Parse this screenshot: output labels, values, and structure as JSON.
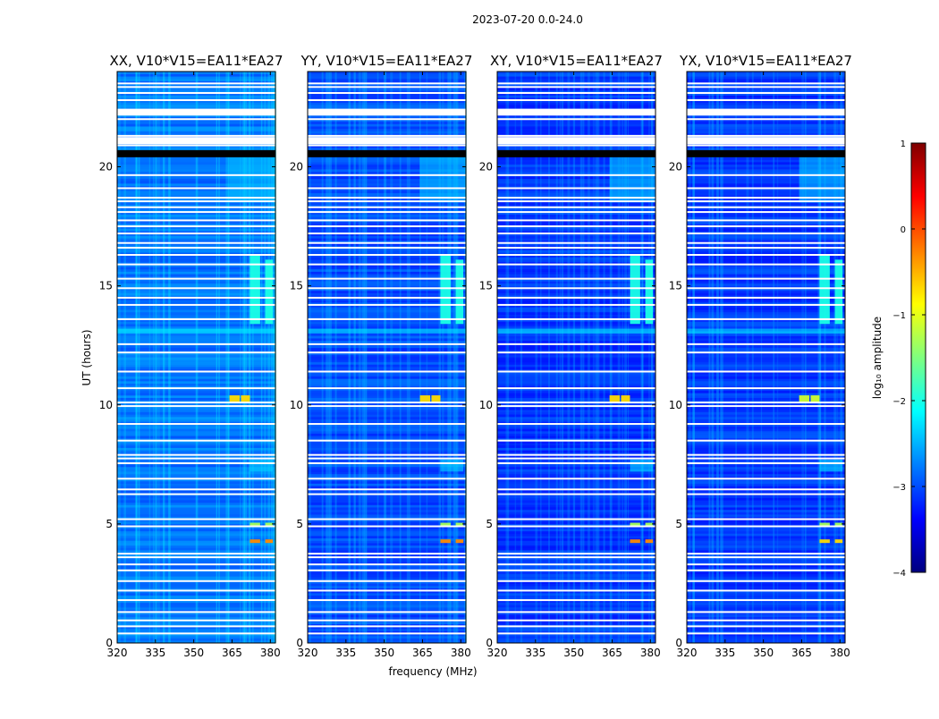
{
  "chart_data": {
    "type": "heatmap",
    "title": "2023-07-20 0.0-24.0",
    "xlabel": "frequency (MHz)",
    "ylabel": "UT (hours)",
    "xlim": [
      320,
      382
    ],
    "ylim": [
      0,
      24
    ],
    "xticks": [
      "320",
      "335",
      "350",
      "365",
      "380"
    ],
    "yticks": [
      "0",
      "5",
      "10",
      "15",
      "20"
    ],
    "colorbar": {
      "label": "log₁₀ amplitude",
      "range": [
        -4,
        1
      ],
      "ticks": [
        "1",
        "0",
        "−1",
        "−2",
        "−3",
        "−4"
      ],
      "stops": [
        "#00007f",
        "#0000ff",
        "#007fff",
        "#00ffff",
        "#7fff7f",
        "#ffff00",
        "#ff7f00",
        "#ff0000",
        "#7f0000"
      ]
    },
    "panels": [
      {
        "title": "XX, V10*V15=EA11*EA27",
        "background_level": -2.8
      },
      {
        "title": "YY, V10*V15=EA11*EA27",
        "background_level": -3.0
      },
      {
        "title": "XY, V10*V15=EA11*EA27",
        "background_level": -3.1
      },
      {
        "title": "YX, V10*V15=EA11*EA27",
        "background_level": -3.1
      }
    ],
    "flagged_hours": [
      0.4,
      0.7,
      0.95,
      1.3,
      1.8,
      2.2,
      2.6,
      3.05,
      3.3,
      3.6,
      3.75,
      4.9,
      5.2,
      6.25,
      6.45,
      6.9,
      7.55,
      7.75,
      7.9,
      8.5,
      9.2,
      9.95,
      10.1,
      10.7,
      11.4,
      12.2,
      12.55,
      13.6,
      14.2,
      14.5,
      14.9,
      15.3,
      15.9,
      16.3,
      16.6,
      16.8,
      17.2,
      17.5,
      17.75,
      18.1,
      18.3,
      18.55,
      18.7,
      19.1,
      19.65,
      20.9,
      21.3,
      22.0,
      22.4,
      22.8,
      23.1,
      23.35,
      23.5
    ],
    "flagged_wide_hours": [
      [
        20.95,
        21.25
      ],
      [
        22.15,
        22.4
      ]
    ],
    "blackout_hours": [
      20.4,
      20.7
    ],
    "features": [
      {
        "f0": 372,
        "f1": 376,
        "t0": 13.4,
        "t1": 16.3,
        "level": -2.0
      },
      {
        "f0": 378,
        "f1": 381,
        "t0": 13.4,
        "t1": 16.1,
        "level": -2.0
      },
      {
        "f0": 364,
        "f1": 368,
        "t0": 10.1,
        "t1": 10.4,
        "level": -0.7
      },
      {
        "f0": 368.5,
        "f1": 372,
        "t0": 10.1,
        "t1": 10.4,
        "level": -0.7
      },
      {
        "f0": 372,
        "f1": 376,
        "t0": 4.2,
        "t1": 4.35,
        "level": -0.3
      },
      {
        "f0": 378,
        "f1": 381,
        "t0": 4.2,
        "t1": 4.35,
        "level": -0.3
      },
      {
        "f0": 372,
        "f1": 376,
        "t0": 4.9,
        "t1": 5.05,
        "level": -1.3
      },
      {
        "f0": 378,
        "f1": 381,
        "t0": 4.9,
        "t1": 5.05,
        "level": -1.3
      },
      {
        "f0": 372,
        "f1": 381,
        "t0": 7.2,
        "t1": 7.7,
        "level": -2.3
      },
      {
        "f0": 320,
        "f1": 382,
        "t0": 13.0,
        "t1": 13.2,
        "level": -2.2
      },
      {
        "f0": 364,
        "f1": 382,
        "t0": 18.5,
        "t1": 20.6,
        "level": -2.4
      }
    ]
  }
}
